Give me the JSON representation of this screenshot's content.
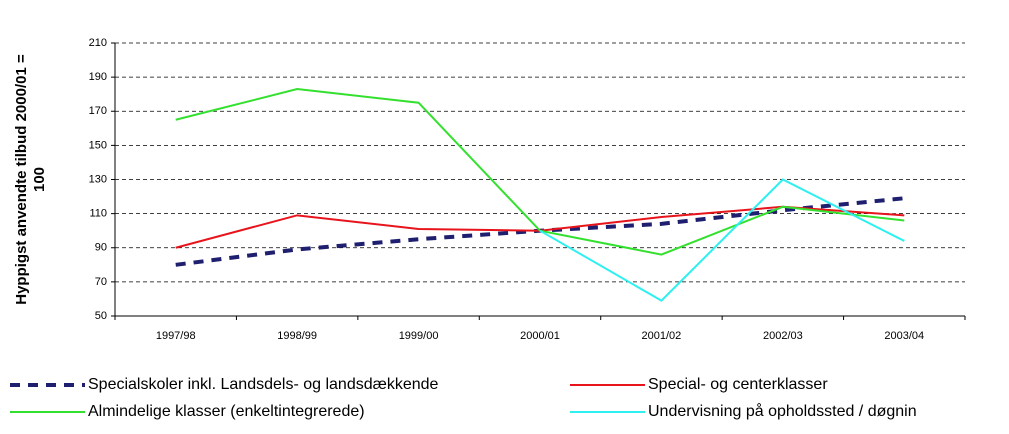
{
  "chart_data": {
    "type": "line",
    "ylabel": [
      "Hyppigst anvendte tilbud 2000/01 =",
      "100"
    ],
    "categories": [
      "1997/98",
      "1998/99",
      "1999/00",
      "2000/01",
      "2001/02",
      "2002/03",
      "2003/04"
    ],
    "series": [
      {
        "name": "Specialskoler inkl. Landsdels- og landsdækkende",
        "color": "#1f1f6f",
        "dash": true,
        "values": [
          80,
          89,
          95,
          100,
          104,
          112,
          119
        ]
      },
      {
        "name": "Special- og centerklasser",
        "color": "#e8141c",
        "dash": false,
        "values": [
          90,
          109,
          101,
          100,
          108,
          114,
          109
        ]
      },
      {
        "name": "Almindelige klasser (enkeltintegrerede)",
        "color": "#33e02e",
        "dash": false,
        "values": [
          165,
          183,
          175,
          100,
          86,
          114,
          106
        ]
      },
      {
        "name": "Undervisning på opholdssted / døgnin",
        "color": "#2ef0f0",
        "dash": false,
        "values": [
          null,
          null,
          null,
          100,
          59,
          130,
          94
        ]
      }
    ],
    "ylim": [
      50,
      210
    ],
    "yticks": [
      50,
      70,
      90,
      110,
      130,
      150,
      170,
      190,
      210
    ],
    "grid": true
  }
}
